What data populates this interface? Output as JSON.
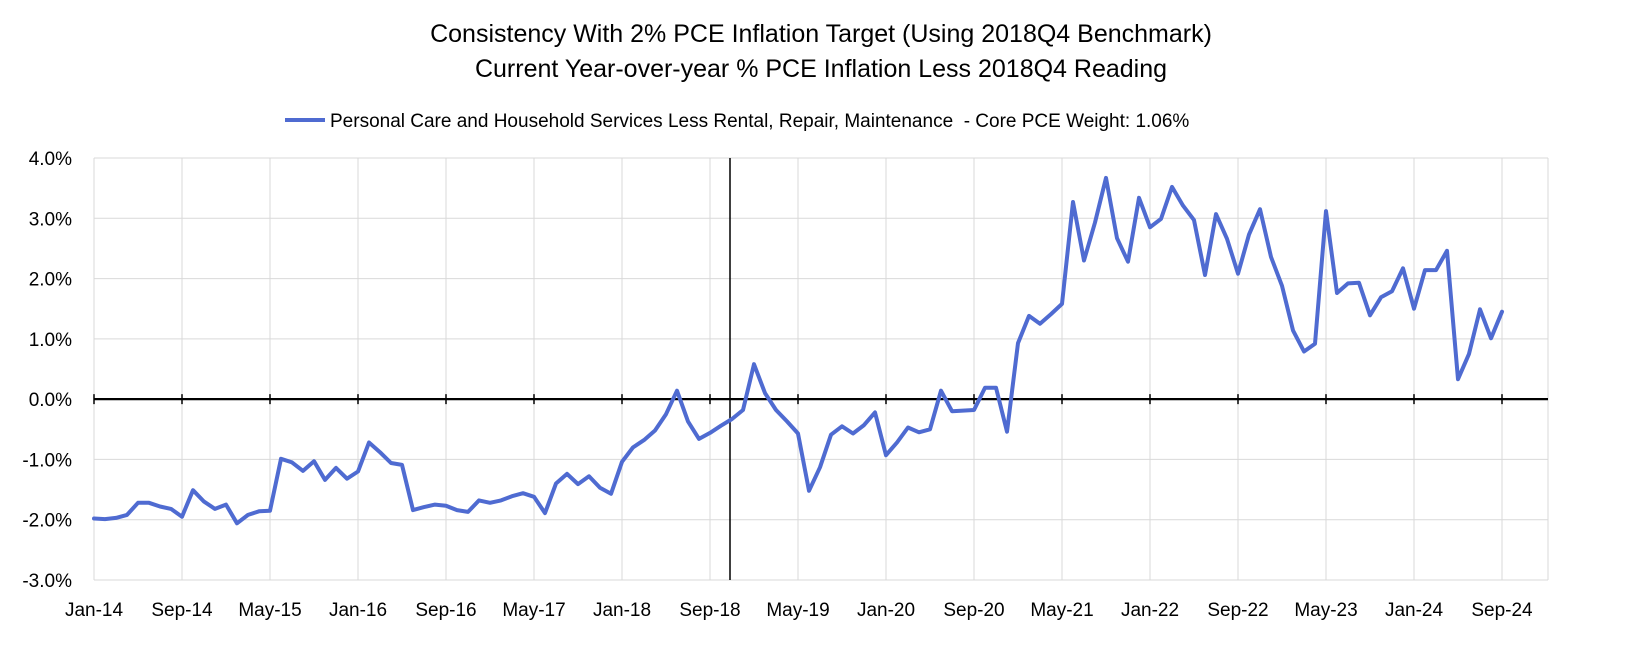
{
  "chart_data": {
    "type": "line",
    "title": "Consistency With 2% PCE Inflation Target (Using 2018Q4 Benchmark)",
    "subtitle": "Current Year-over-year % PCE Inflation Less 2018Q4 Reading",
    "legend_position": "top-center",
    "grid": true,
    "y_unit": "%",
    "ylim": [
      -3.0,
      4.0
    ],
    "yticks": [
      4.0,
      3.0,
      2.0,
      1.0,
      0.0,
      -1.0,
      -2.0,
      -3.0
    ],
    "ytick_labels": [
      "4.0%",
      "3.0%",
      "2.0%",
      "1.0%",
      "0.0%",
      "-1.0%",
      "-2.0%",
      "-3.0%"
    ],
    "xtick_labels": [
      "Jan-14",
      "Sep-14",
      "May-15",
      "Jan-16",
      "Sep-16",
      "May-17",
      "Jan-18",
      "Sep-18",
      "May-19",
      "Jan-20",
      "Sep-20",
      "May-21",
      "Jan-22",
      "Sep-22",
      "May-23",
      "Jan-24",
      "Sep-24"
    ],
    "xtick_step_months": 8,
    "x_start": "Jan-14",
    "x_end": "Sep-24",
    "benchmark_line": {
      "label": "2018Q4",
      "month_index": 58
    },
    "series": [
      {
        "name": "Personal Care and Household Services Less Rental, Repair, Maintenance  - Core PCE Weight: 1.06%",
        "color": "#4f6bd1",
        "values": [
          -1.98,
          -1.99,
          -1.97,
          -1.92,
          -1.72,
          -1.72,
          -1.78,
          -1.82,
          -1.95,
          -1.51,
          -1.7,
          -1.82,
          -1.75,
          -2.06,
          -1.92,
          -1.86,
          -1.85,
          -0.99,
          -1.05,
          -1.19,
          -1.03,
          -1.34,
          -1.14,
          -1.32,
          -1.2,
          -0.72,
          -0.88,
          -1.06,
          -1.09,
          -1.84,
          -1.79,
          -1.75,
          -1.77,
          -1.84,
          -1.87,
          -1.68,
          -1.72,
          -1.68,
          -1.61,
          -1.56,
          -1.62,
          -1.89,
          -1.4,
          -1.24,
          -1.41,
          -1.28,
          -1.47,
          -1.57,
          -1.04,
          -0.8,
          -0.68,
          -0.52,
          -0.25,
          0.14,
          -0.37,
          -0.66,
          -0.56,
          -0.44,
          -0.33,
          -0.18,
          0.58,
          0.1,
          -0.18,
          -0.37,
          -0.57,
          -1.52,
          -1.13,
          -0.59,
          -0.45,
          -0.57,
          -0.43,
          -0.22,
          -0.93,
          -0.72,
          -0.47,
          -0.55,
          -0.5,
          0.14,
          -0.2,
          -0.19,
          -0.18,
          0.19,
          0.19,
          -0.54,
          0.93,
          1.38,
          1.25,
          1.41,
          1.58,
          3.27,
          2.3,
          2.93,
          3.67,
          2.67,
          2.28,
          3.34,
          2.85,
          2.99,
          3.52,
          3.21,
          2.97,
          2.06,
          3.07,
          2.66,
          2.08,
          2.73,
          3.15,
          2.36,
          1.88,
          1.14,
          0.79,
          0.92,
          3.12,
          1.76,
          1.92,
          1.93,
          1.39,
          1.69,
          1.79,
          2.17,
          1.5,
          2.14,
          2.14,
          2.46,
          0.33,
          0.75,
          1.49,
          1.01,
          1.45
        ]
      }
    ]
  }
}
